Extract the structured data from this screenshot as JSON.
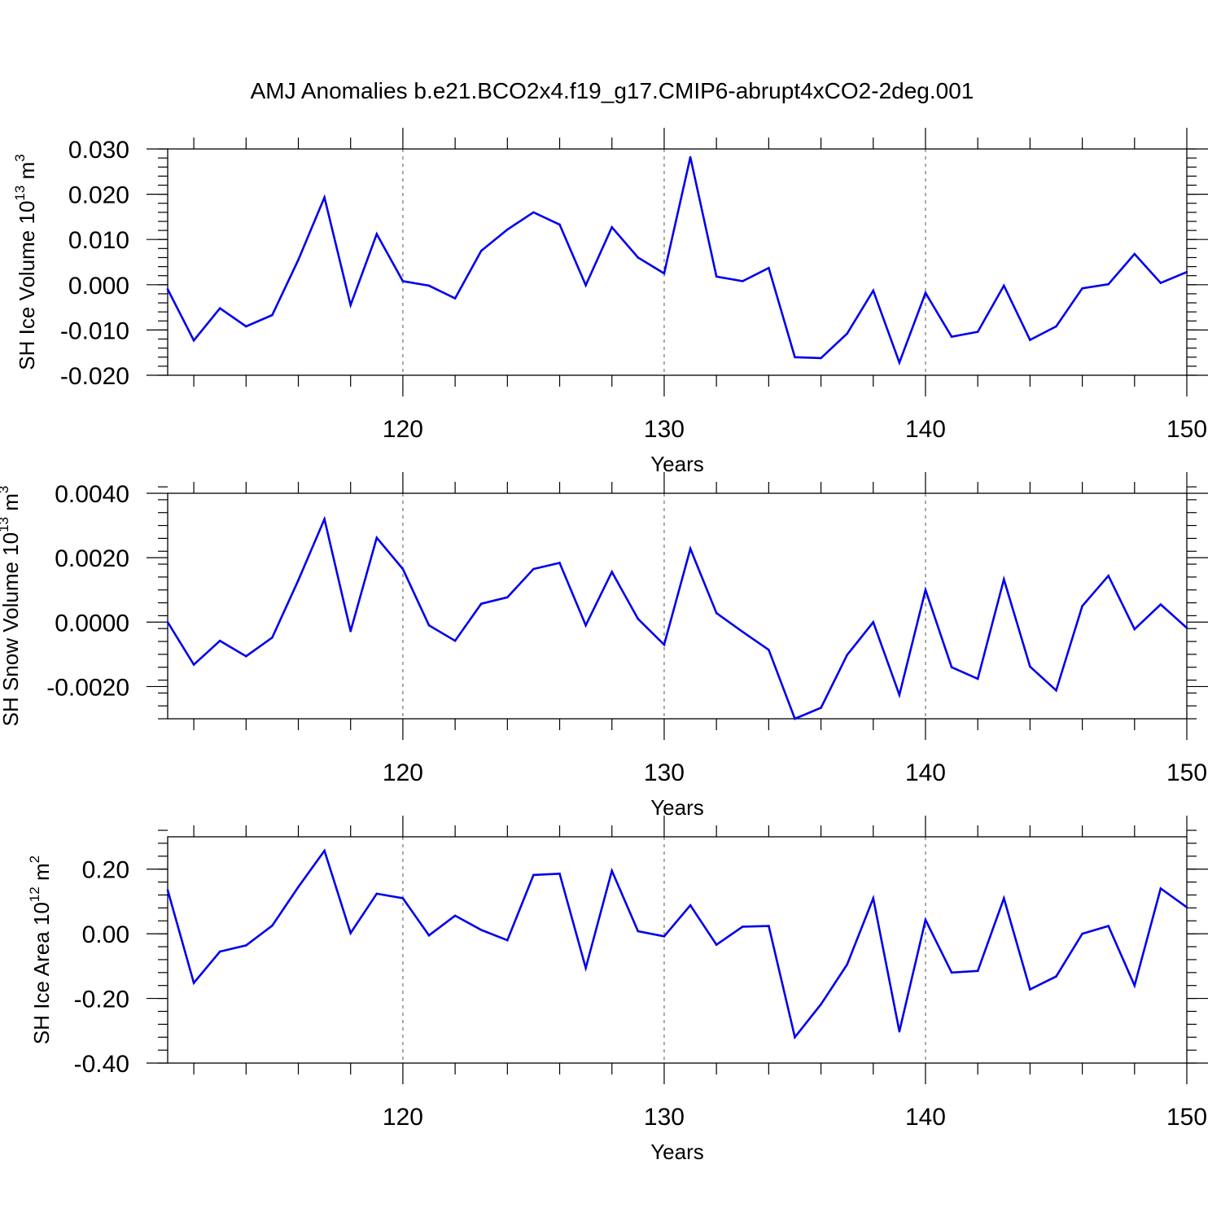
{
  "title": "AMJ Anomalies b.e21.BCO2x4.f19_g17.CMIP6-abrupt4xCO2-2deg.001",
  "colors": {
    "series": "#0000ee",
    "axis": "#000000",
    "grid": "#555555"
  },
  "chart_data": [
    {
      "type": "line",
      "ylabel": "SH Ice Volume 10",
      "ylabel_exp": "13",
      "ylabel_unit": " m",
      "ylabel_unit_exp": "3",
      "xlabel": "Years",
      "xlim": [
        111,
        150
      ],
      "ylim": [
        -0.02,
        0.03
      ],
      "y_ticks": [
        -0.02,
        -0.01,
        0.0,
        0.01,
        0.02,
        0.03
      ],
      "y_tick_labels": [
        "-0.020",
        "-0.010",
        "0.000",
        "0.010",
        "0.020",
        "0.030"
      ],
      "y_minor_step": 0.002,
      "x_ticks": [
        120,
        130,
        140,
        150
      ],
      "x_tick_labels": [
        "120",
        "130",
        "140",
        "150"
      ],
      "x_grid": [
        120,
        130,
        140
      ],
      "x": [
        111,
        112,
        113,
        114,
        115,
        116,
        117,
        118,
        119,
        120,
        121,
        122,
        123,
        124,
        125,
        126,
        127,
        128,
        129,
        130,
        131,
        132,
        133,
        134,
        135,
        136,
        137,
        138,
        139,
        140,
        141,
        142,
        143,
        144,
        145,
        146,
        147,
        148,
        149,
        150
      ],
      "values": [
        -0.001,
        -0.0123,
        -0.0052,
        -0.0092,
        -0.0067,
        0.0055,
        0.0193,
        -0.0045,
        0.0112,
        0.0008,
        -0.0002,
        -0.003,
        0.0075,
        0.0122,
        0.016,
        0.0133,
        -0.0001,
        0.0127,
        0.006,
        0.0025,
        0.0282,
        0.0018,
        0.0008,
        0.0037,
        -0.016,
        -0.0162,
        -0.0108,
        -0.0013,
        -0.0172,
        -0.0018,
        -0.0115,
        -0.0104,
        -0.0002,
        -0.0122,
        -0.0092,
        -0.0008,
        0.0001,
        0.0068,
        0.0004,
        0.0028
      ]
    },
    {
      "type": "line",
      "ylabel": "SH Snow Volume 10",
      "ylabel_exp": "13",
      "ylabel_unit": " m",
      "ylabel_unit_exp": "3",
      "xlabel": "Years",
      "xlim": [
        111,
        150
      ],
      "ylim": [
        -0.003,
        0.004
      ],
      "y_ticks": [
        -0.002,
        0.0,
        0.002,
        0.004
      ],
      "y_tick_labels": [
        "-0.0020",
        "0.0000",
        "0.0020",
        "0.0040"
      ],
      "y_minor_step": 0.0004,
      "x_ticks": [
        120,
        130,
        140,
        150
      ],
      "x_tick_labels": [
        "120",
        "130",
        "140",
        "150"
      ],
      "x_grid": [
        120,
        130,
        140
      ],
      "x": [
        111,
        112,
        113,
        114,
        115,
        116,
        117,
        118,
        119,
        120,
        121,
        122,
        123,
        124,
        125,
        126,
        127,
        128,
        129,
        130,
        131,
        132,
        133,
        134,
        135,
        136,
        137,
        138,
        139,
        140,
        141,
        142,
        143,
        144,
        145,
        146,
        147,
        148,
        149,
        150
      ],
      "values": [
        0.0,
        -0.00132,
        -0.00058,
        -0.00106,
        -0.00048,
        0.0013,
        0.0032,
        -0.00028,
        0.00262,
        0.00165,
        -0.0001,
        -0.00058,
        0.00057,
        0.00077,
        0.00165,
        0.00184,
        -0.0001,
        0.00156,
        0.0001,
        -0.0007,
        0.00228,
        0.00028,
        -0.0003,
        -0.00086,
        -0.003,
        -0.00266,
        -0.00102,
        0.0,
        -0.00226,
        0.001,
        -0.0014,
        -0.00176,
        0.00133,
        -0.00138,
        -0.00212,
        0.0005,
        0.00144,
        -0.00022,
        0.00055,
        -0.00018
      ]
    },
    {
      "type": "line",
      "ylabel": "SH Ice Area 10",
      "ylabel_exp": "12",
      "ylabel_unit": " m",
      "ylabel_unit_exp": "2",
      "xlabel": "Years",
      "xlim": [
        111,
        150
      ],
      "ylim": [
        -0.4,
        0.3
      ],
      "y_ticks": [
        -0.4,
        -0.2,
        0.0,
        0.2
      ],
      "y_tick_labels": [
        "-0.40",
        "-0.20",
        "0.00",
        "0.20"
      ],
      "y_minor_step": 0.04,
      "x_ticks": [
        120,
        130,
        140,
        150
      ],
      "x_tick_labels": [
        "120",
        "130",
        "140",
        "150"
      ],
      "x_grid": [
        120,
        130,
        140
      ],
      "x": [
        111,
        112,
        113,
        114,
        115,
        116,
        117,
        118,
        119,
        120,
        121,
        122,
        123,
        124,
        125,
        126,
        127,
        128,
        129,
        130,
        131,
        132,
        133,
        134,
        135,
        136,
        137,
        138,
        139,
        140,
        141,
        142,
        143,
        144,
        145,
        146,
        147,
        148,
        149,
        150
      ],
      "values": [
        0.135,
        -0.152,
        -0.055,
        -0.036,
        0.025,
        0.145,
        0.257,
        0.002,
        0.124,
        0.11,
        -0.005,
        0.056,
        0.012,
        -0.02,
        0.182,
        0.186,
        -0.106,
        0.195,
        0.008,
        -0.008,
        0.088,
        -0.034,
        0.022,
        0.024,
        -0.32,
        -0.218,
        -0.095,
        0.11,
        -0.302,
        0.043,
        -0.12,
        -0.115,
        0.11,
        -0.172,
        -0.132,
        0.0,
        0.024,
        -0.16,
        0.14,
        0.082
      ]
    }
  ]
}
